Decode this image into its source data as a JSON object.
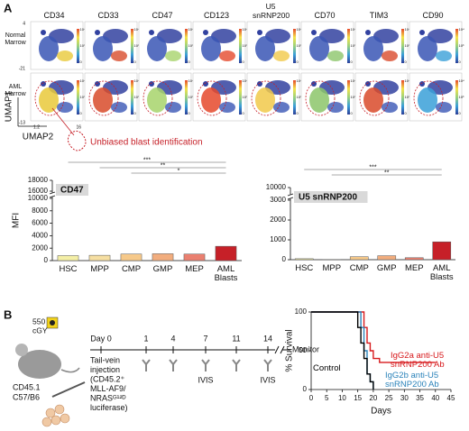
{
  "panel_labels": [
    "A",
    "B"
  ],
  "umap": {
    "markers": [
      "CD34",
      "CD33",
      "CD47",
      "CD123",
      "U5 snRNP200",
      "CD70",
      "TIM3",
      "CD90"
    ],
    "rows": [
      "Normal Marrow",
      "AML Marrow"
    ],
    "axis_labels": [
      "UMAP1",
      "UMAP2"
    ],
    "axis_ticks": [
      "4",
      "-21",
      "-13",
      "1.2",
      "16"
    ],
    "colorbar_labels": [
      "10⁴",
      "10³",
      "0"
    ],
    "annotation": "Unbiased blast identification"
  },
  "chart_data": [
    {
      "type": "bar",
      "title": "CD47",
      "ylabel": "MFI",
      "categories": [
        "HSC",
        "MPP",
        "CMP",
        "GMP",
        "MEP",
        "AML Blasts"
      ],
      "values": [
        800,
        850,
        1050,
        1100,
        1050,
        2300
      ],
      "colors": [
        "#f4efa6",
        "#f6dfa2",
        "#f6c98a",
        "#f2ad7e",
        "#ea8070",
        "#c62028"
      ],
      "ylim": [
        0,
        18000
      ],
      "ybreak": [
        10000,
        16000
      ],
      "yticks": [
        0,
        2000,
        4000,
        6000,
        8000,
        10000,
        16000,
        18000
      ],
      "annotations": [
        "***",
        "**",
        "*"
      ]
    },
    {
      "type": "bar",
      "title": "U5 snRNP200",
      "categories": [
        "HSC",
        "MPP",
        "CMP",
        "GMP",
        "MEP",
        "AML Blasts"
      ],
      "values": [
        50,
        10,
        150,
        200,
        100,
        900
      ],
      "colors": [
        "#f4efa6",
        "#f6dfa2",
        "#f6c98a",
        "#f2ad7e",
        "#ea8070",
        "#c62028"
      ],
      "ylim": [
        0,
        10000
      ],
      "ybreak": [
        3000,
        9000
      ],
      "yticks": [
        0,
        1000,
        2000,
        3000,
        10000
      ],
      "annotations": [
        "***",
        "**"
      ]
    },
    {
      "type": "line",
      "step": true,
      "xlabel": "Days",
      "ylabel": "% Survival",
      "xlim": [
        0,
        45
      ],
      "xticks": [
        0,
        5,
        10,
        15,
        20,
        25,
        30,
        35,
        40,
        45
      ],
      "ylim": [
        0,
        100
      ],
      "yticks": [
        0,
        50,
        100
      ],
      "series": [
        {
          "name": "IgG2a anti-U5 snRNP200 Ab",
          "color": "#d7191c",
          "x": [
            0,
            17,
            18,
            19,
            20,
            22,
            40
          ],
          "values": [
            100,
            80,
            60,
            50,
            40,
            35,
            35
          ]
        },
        {
          "name": "IgG2b anti-U5 snRNP200 Ab",
          "color": "#2b83ba",
          "x": [
            0,
            16,
            17,
            18,
            19,
            20
          ],
          "values": [
            100,
            80,
            50,
            20,
            10,
            0
          ]
        },
        {
          "name": "Control",
          "color": "#000000",
          "x": [
            0,
            15,
            16,
            17,
            18,
            19,
            20
          ],
          "values": [
            100,
            80,
            60,
            40,
            20,
            10,
            0
          ]
        }
      ]
    }
  ],
  "schematic": {
    "dose": [
      "550",
      "cGY"
    ],
    "mouse": [
      "CD45.1",
      "C57/B6"
    ],
    "days": [
      "Day 0",
      "1",
      "4",
      "7",
      "11",
      "14"
    ],
    "monitor": "Monitor",
    "injection": [
      "Tail-vein",
      "injection",
      "(CD45.2⁺",
      "MLL-AF9/",
      "NRASᴳ¹²ᴰ",
      "luciferase)"
    ],
    "imaging": [
      "IVIS",
      "IVIS"
    ]
  }
}
